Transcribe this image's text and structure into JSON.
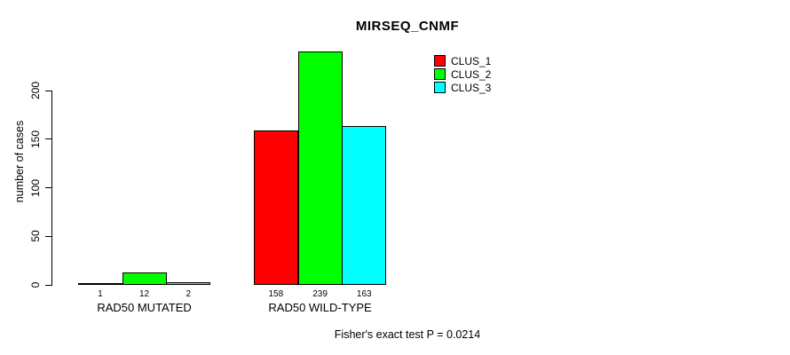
{
  "chart_data": {
    "type": "bar",
    "title": "MIRSEQ_CNMF",
    "ylabel": "number of cases",
    "xlabel": "",
    "ylim": [
      0,
      240
    ],
    "yticks": [
      0,
      50,
      100,
      150,
      200
    ],
    "grid": false,
    "legend_position": "top-right",
    "categories": [
      "RAD50 MUTATED",
      "RAD50 WILD-TYPE"
    ],
    "series": [
      {
        "name": "CLUS_1",
        "color": "#ff0000",
        "values": [
          1,
          158
        ]
      },
      {
        "name": "CLUS_2",
        "color": "#00ff00",
        "values": [
          12,
          239
        ]
      },
      {
        "name": "CLUS_3",
        "color": "#00ffff",
        "values": [
          2,
          163
        ]
      }
    ],
    "bar_value_labels": [
      [
        1,
        12,
        2
      ],
      [
        158,
        239,
        163
      ]
    ],
    "annotation": "Fisher's exact test P = 0.0214"
  },
  "colors": {
    "background": "#ffffff",
    "axis": "#000000",
    "bar_border": "#000000",
    "text": "#000000"
  }
}
